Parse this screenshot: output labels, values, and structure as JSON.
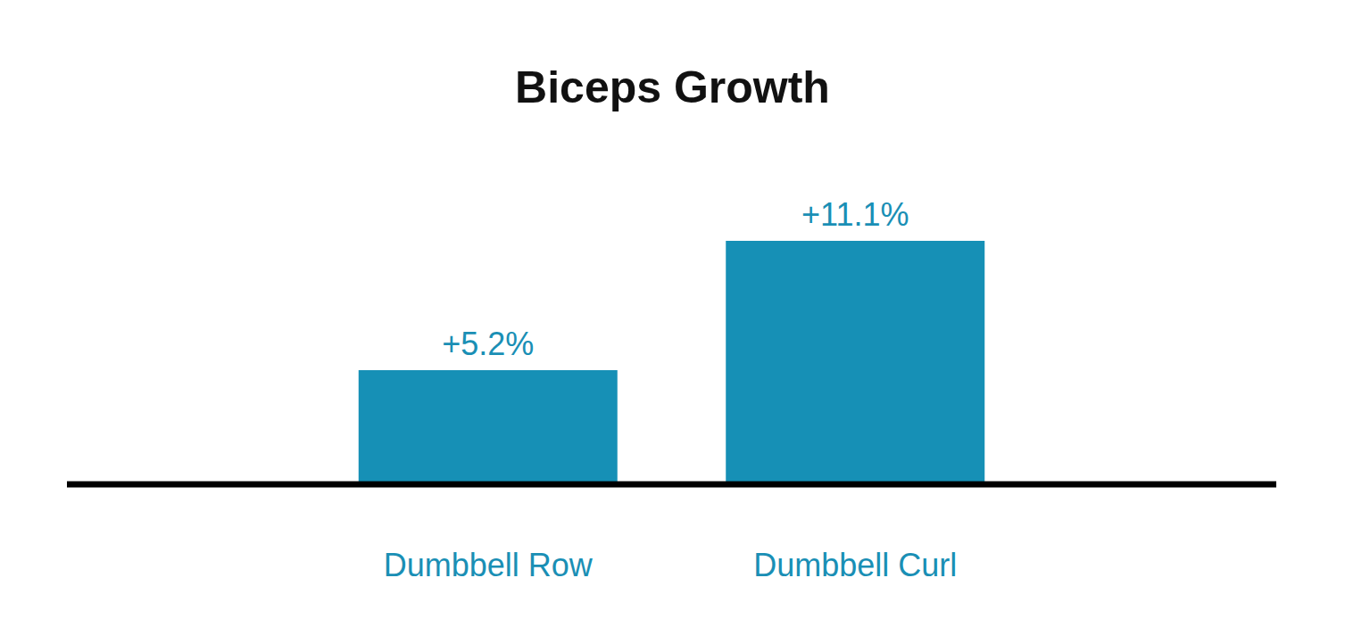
{
  "chart_data": {
    "type": "bar",
    "title": "Biceps Growth",
    "categories": [
      "Dumbbell Row",
      "Dumbbell Curl"
    ],
    "values": [
      5.2,
      11.1
    ],
    "value_labels": [
      "+5.2%",
      "+11.1%"
    ],
    "color": "#1690b6",
    "data_labels": true,
    "tick_labels": "x",
    "grid": false
  }
}
